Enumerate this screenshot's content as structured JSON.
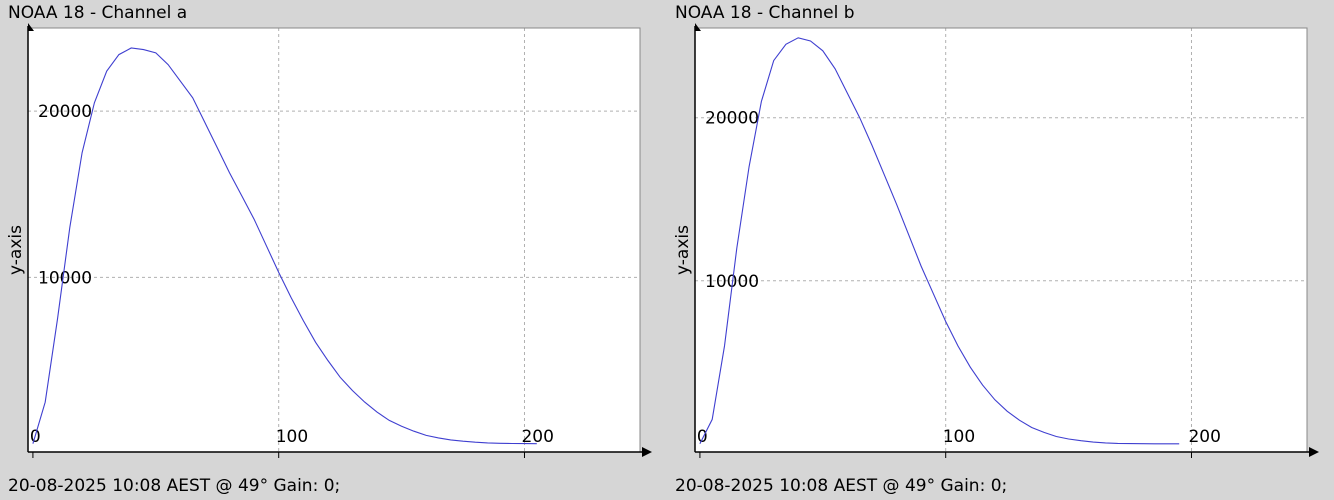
{
  "chart_data": [
    {
      "type": "line",
      "title": "NOAA 18 - Channel a",
      "footer": "20-08-2025 10:08 AEST @ 49° Gain: 0;",
      "xlabel": "",
      "ylabel": "y-axis",
      "xlim": [
        -2,
        247
      ],
      "ylim": [
        -500,
        25000
      ],
      "xticks": [
        "0",
        "100",
        "200"
      ],
      "yticks": [
        "10000",
        "20000"
      ],
      "grid": true,
      "line_color": "#3f3fd0",
      "series": [
        {
          "x": [
            0,
            5,
            10,
            15,
            20,
            25,
            30,
            35,
            40,
            45,
            50,
            55,
            60,
            65,
            70,
            75,
            80,
            85,
            90,
            95,
            100,
            105,
            110,
            115,
            120,
            125,
            130,
            135,
            140,
            145,
            150,
            155,
            160,
            165,
            170,
            175,
            180,
            185,
            190,
            195,
            200,
            205
          ],
          "y": [
            0,
            2500,
            7500,
            13000,
            17500,
            20500,
            22400,
            23400,
            23800,
            23700,
            23500,
            22800,
            21800,
            20800,
            19300,
            17800,
            16300,
            14900,
            13500,
            11900,
            10300,
            8800,
            7400,
            6100,
            5000,
            4000,
            3200,
            2500,
            1900,
            1400,
            1050,
            750,
            500,
            350,
            230,
            150,
            90,
            50,
            25,
            10,
            5,
            0
          ]
        }
      ]
    },
    {
      "type": "line",
      "title": "NOAA 18 - Channel b",
      "footer": "20-08-2025 10:08 AEST @ 49° Gain: 0;",
      "xlabel": "",
      "ylabel": "y-axis",
      "xlim": [
        -2,
        247
      ],
      "ylim": [
        -500,
        25500
      ],
      "xticks": [
        "0",
        "100",
        "200"
      ],
      "yticks": [
        "10000",
        "20000"
      ],
      "grid": true,
      "line_color": "#3f3fd0",
      "series": [
        {
          "x": [
            0,
            5,
            10,
            15,
            20,
            25,
            30,
            35,
            40,
            45,
            50,
            55,
            60,
            65,
            70,
            75,
            80,
            85,
            90,
            95,
            100,
            105,
            110,
            115,
            120,
            125,
            130,
            135,
            140,
            145,
            150,
            155,
            160,
            165,
            170,
            175,
            180,
            185,
            190,
            195
          ],
          "y": [
            0,
            1500,
            6000,
            12000,
            17000,
            21000,
            23500,
            24500,
            24900,
            24700,
            24100,
            23000,
            21500,
            20000,
            18300,
            16500,
            14700,
            12800,
            10900,
            9200,
            7500,
            6000,
            4700,
            3600,
            2700,
            2000,
            1450,
            1000,
            700,
            450,
            300,
            190,
            110,
            60,
            30,
            15,
            8,
            3,
            1,
            0
          ]
        }
      ]
    }
  ]
}
